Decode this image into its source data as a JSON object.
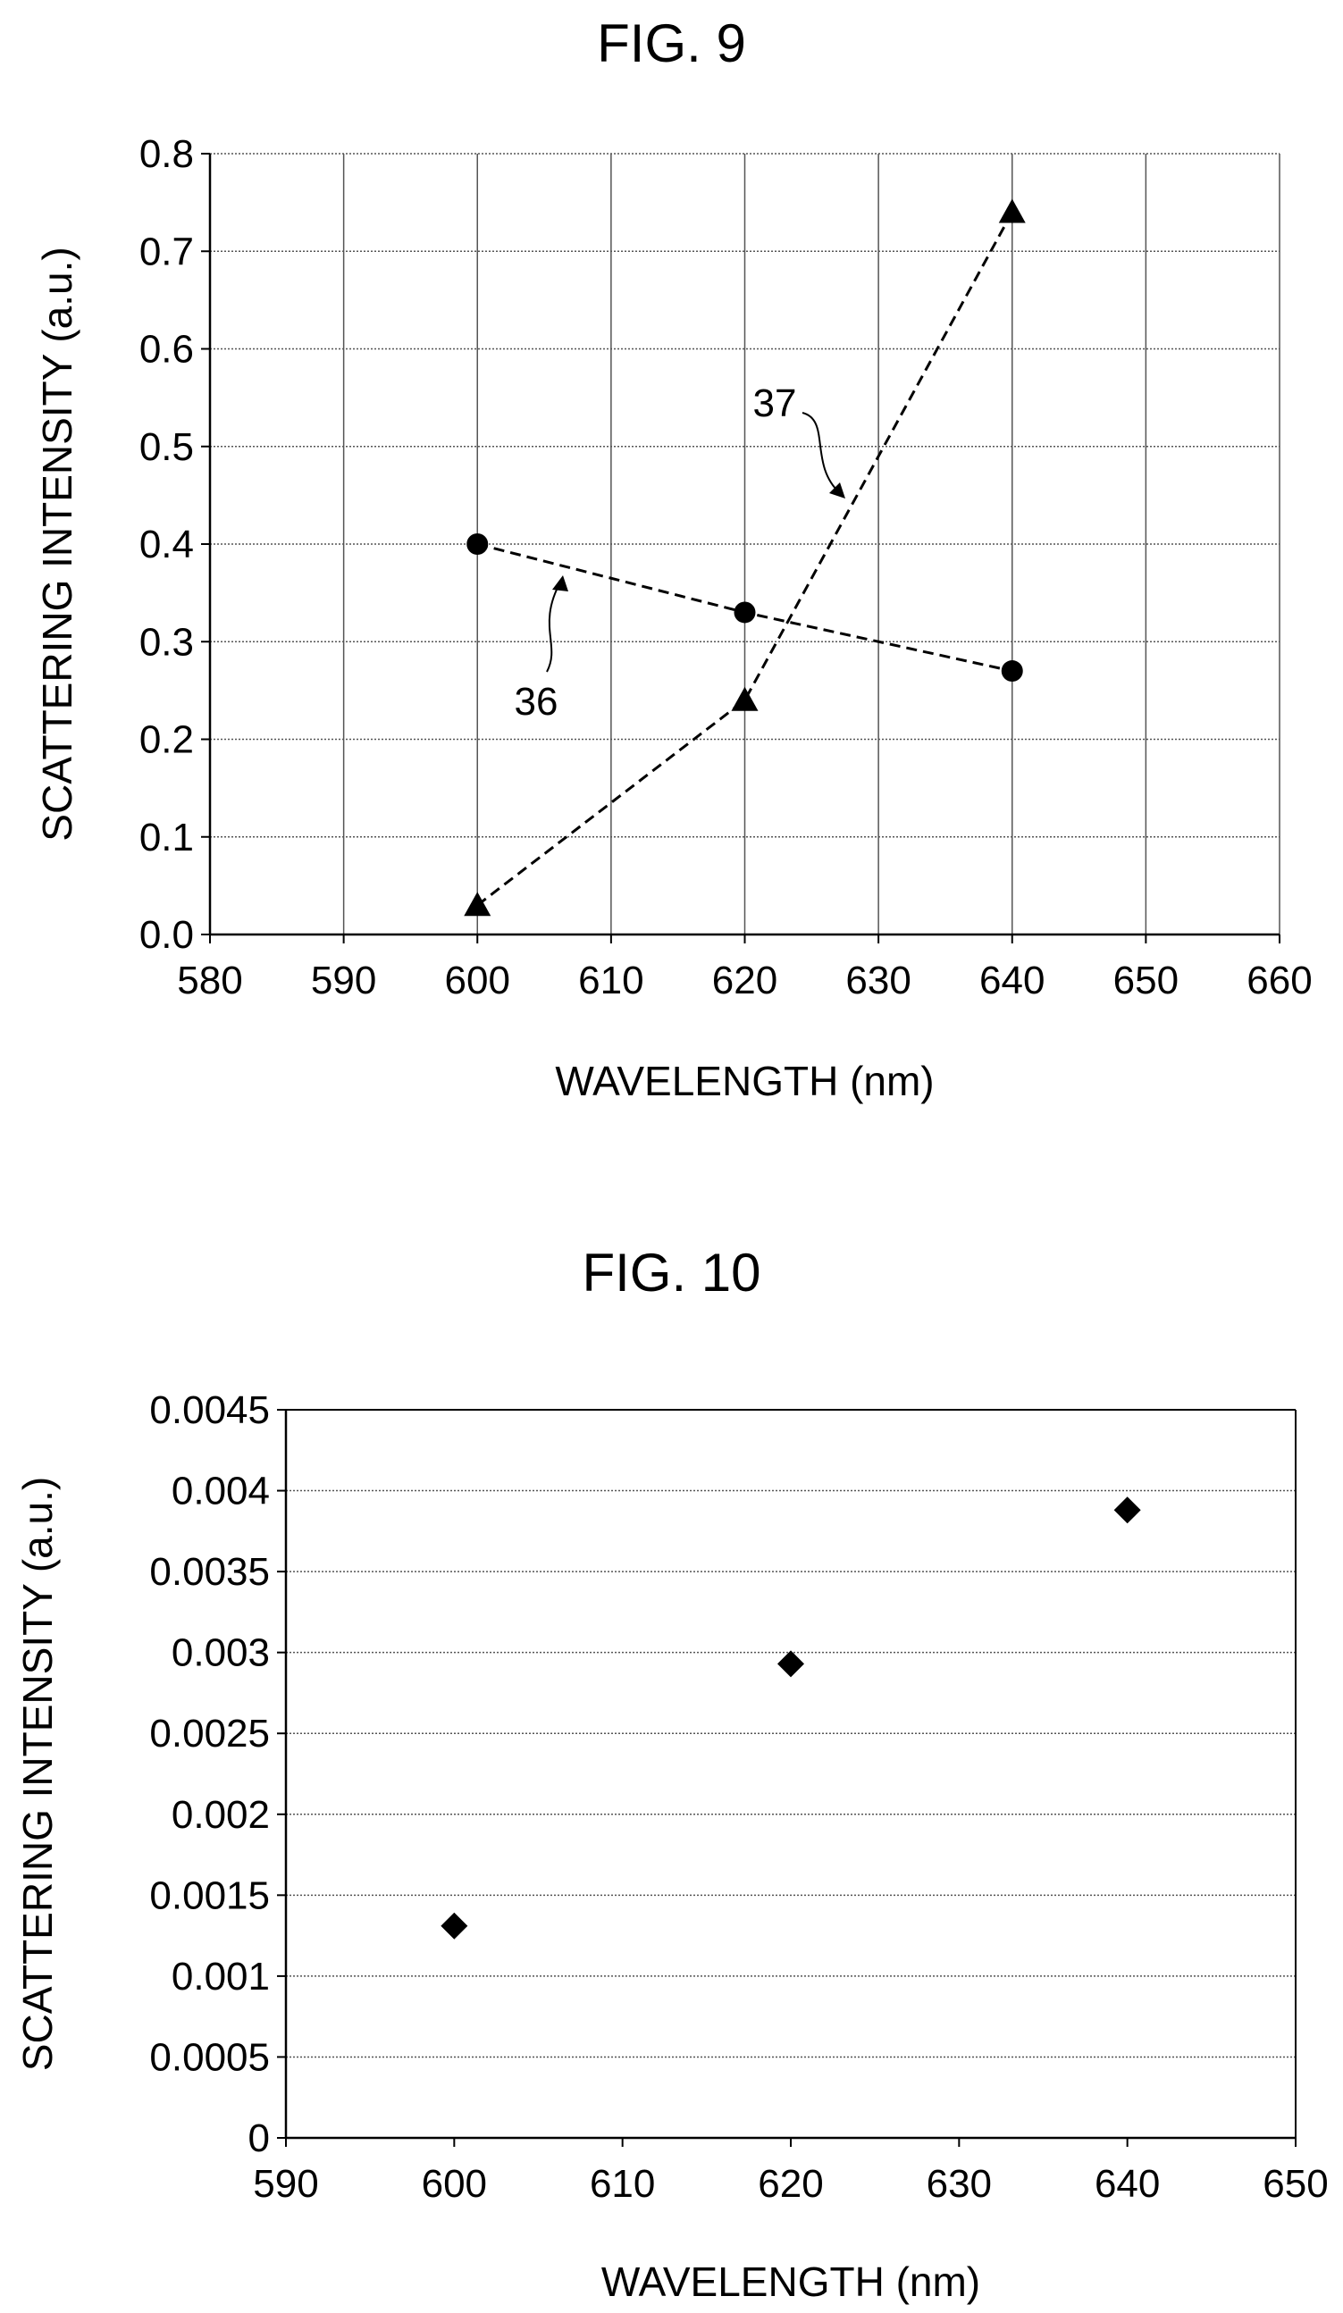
{
  "chart_data": [
    {
      "type": "line",
      "title": "FIG. 9",
      "xlabel": "WAVELENGTH (nm)",
      "ylabel": "SCATTERING INTENSITY (a.u.)",
      "xlim": [
        580,
        660
      ],
      "ylim": [
        0.0,
        0.8
      ],
      "xticks": [
        "580",
        "590",
        "600",
        "610",
        "620",
        "630",
        "640",
        "650",
        "660"
      ],
      "yticks": [
        "0.0",
        "0.1",
        "0.2",
        "0.3",
        "0.4",
        "0.5",
        "0.6",
        "0.7",
        "0.8"
      ],
      "grid": true,
      "series": [
        {
          "name": "36",
          "marker": "circle",
          "x": [
            600,
            620,
            640
          ],
          "values": [
            0.4,
            0.33,
            0.27
          ]
        },
        {
          "name": "37",
          "marker": "triangle",
          "x": [
            600,
            620,
            640
          ],
          "values": [
            0.03,
            0.24,
            0.74
          ]
        }
      ]
    },
    {
      "type": "scatter",
      "title": "FIG. 10",
      "xlabel": "WAVELENGTH (nm)",
      "ylabel": "SCATTERING INTENSITY (a.u.)",
      "xlim": [
        590,
        650
      ],
      "ylim": [
        0,
        0.0045
      ],
      "xticks": [
        "590",
        "600",
        "610",
        "620",
        "630",
        "640",
        "650"
      ],
      "yticks": [
        "0",
        "0.0005",
        "0.001",
        "0.0015",
        "0.002",
        "0.0025",
        "0.003",
        "0.0035",
        "0.004",
        "0.0045"
      ],
      "grid": "horizontal",
      "series": [
        {
          "marker": "diamond",
          "x": [
            600,
            620,
            640
          ],
          "values": [
            0.00131,
            0.00293,
            0.00388
          ]
        }
      ]
    }
  ]
}
